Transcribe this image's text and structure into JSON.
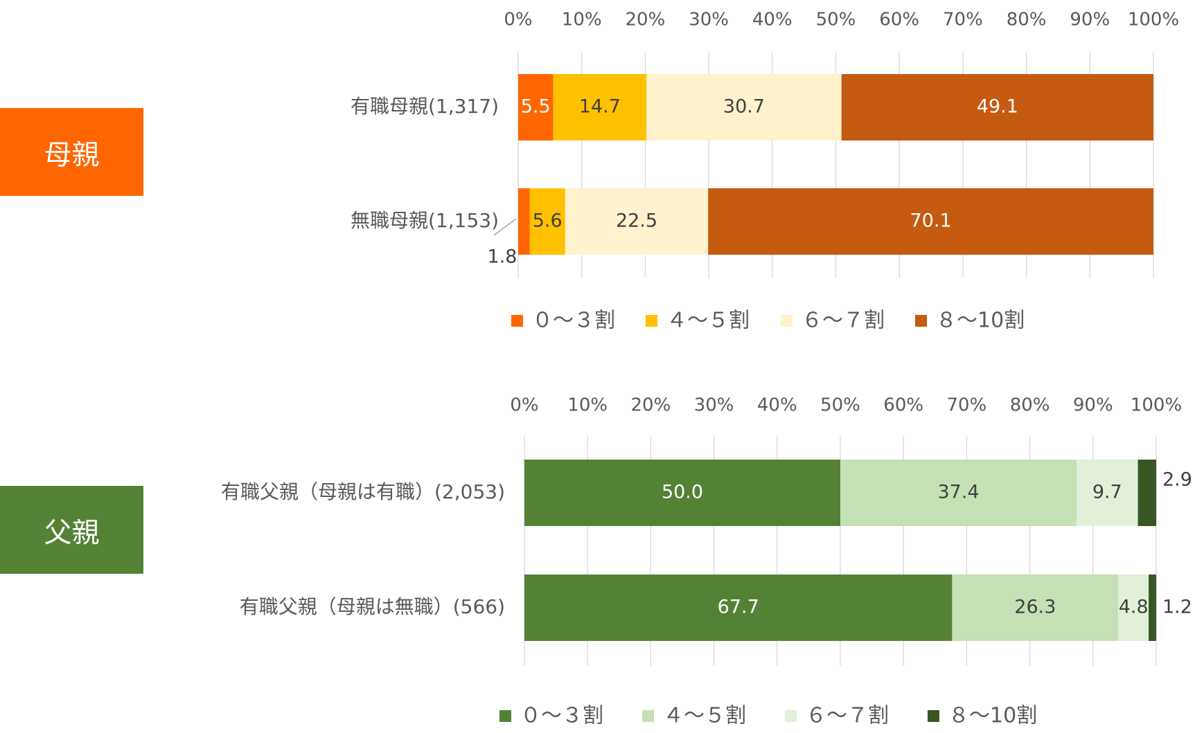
{
  "sections": [
    {
      "label": "母親",
      "color": "#FF6600"
    },
    {
      "label": "父親",
      "color": "#548235"
    }
  ],
  "chart_data": [
    {
      "type": "bar",
      "orientation": "horizontal",
      "stacked": true,
      "title": "",
      "xlim": [
        0,
        100
      ],
      "ticks": [
        "0%",
        "10%",
        "20%",
        "30%",
        "40%",
        "50%",
        "60%",
        "70%",
        "80%",
        "90%",
        "100%"
      ],
      "grid": true,
      "legend_position": "bottom",
      "categories": [
        "有職母親(1,317)",
        "無職母親(1,153)"
      ],
      "series": [
        {
          "name": "０～３割",
          "color": "#FF6600",
          "values": [
            5.5,
            1.8
          ]
        },
        {
          "name": "４～５割",
          "color": "#FFC000",
          "values": [
            14.7,
            5.6
          ]
        },
        {
          "name": "６～７割",
          "color": "#FFF2CC",
          "values": [
            30.7,
            22.5
          ]
        },
        {
          "name": "８～10割",
          "color": "#C55A11",
          "values": [
            49.1,
            70.1
          ]
        }
      ]
    },
    {
      "type": "bar",
      "orientation": "horizontal",
      "stacked": true,
      "title": "",
      "xlim": [
        0,
        100
      ],
      "ticks": [
        "0%",
        "10%",
        "20%",
        "30%",
        "40%",
        "50%",
        "60%",
        "70%",
        "80%",
        "90%",
        "100%"
      ],
      "grid": true,
      "legend_position": "bottom",
      "categories": [
        "有職父親（母親は有職）(2,053)",
        "有職父親（母親は無職）(566)"
      ],
      "series": [
        {
          "name": "０～３割",
          "color": "#548235",
          "values": [
            50.0,
            67.7
          ]
        },
        {
          "name": "４～５割",
          "color": "#C5E0B4",
          "values": [
            37.4,
            26.3
          ]
        },
        {
          "name": "６～７割",
          "color": "#E2F0D9",
          "values": [
            9.7,
            4.8
          ]
        },
        {
          "name": "８～10割",
          "color": "#375623",
          "values": [
            2.9,
            1.2
          ]
        }
      ]
    }
  ]
}
